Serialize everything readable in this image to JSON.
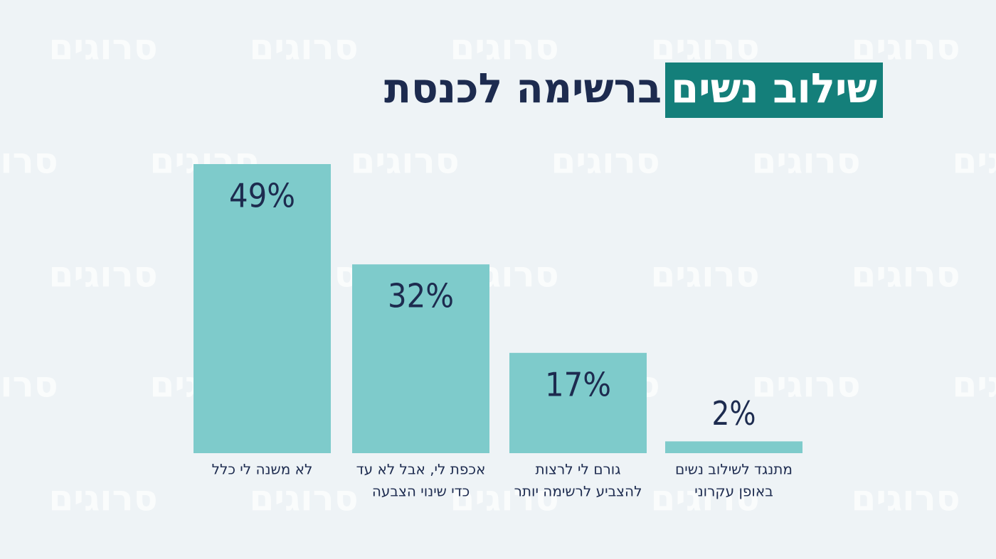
{
  "chart_data": {
    "type": "bar",
    "title": [
      "שילוב נשים",
      "ברשימה לכנסת"
    ],
    "watermark": "סרוגים",
    "categories": [
      [
        "לא משנה לי כלל"
      ],
      [
        "אכפת לי, אבל לא עד",
        "כדי שינוי הצבעה"
      ],
      [
        "גורם לי לרצות",
        "להצביע לרשימה יותר"
      ],
      [
        "מתנגד לשילוב נשים",
        "באופן עקרוני"
      ]
    ],
    "values": [
      49,
      32,
      17,
      2
    ],
    "value_labels": [
      "49%",
      "32%",
      "17%",
      "2%"
    ],
    "color": "#7ecbcb",
    "ylim": [
      0,
      49
    ]
  }
}
